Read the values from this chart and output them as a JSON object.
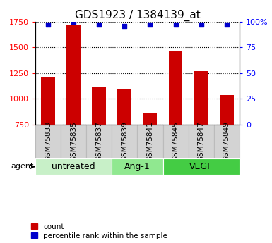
{
  "title": "GDS1923 / 1384139_at",
  "samples": [
    "GSM75833",
    "GSM75835",
    "GSM75837",
    "GSM75839",
    "GSM75841",
    "GSM75845",
    "GSM75847",
    "GSM75849"
  ],
  "counts": [
    1210,
    1720,
    1110,
    1100,
    860,
    1470,
    1270,
    1040
  ],
  "percentile_ranks": [
    97,
    100,
    97,
    96,
    97,
    97,
    97,
    97
  ],
  "groups": [
    {
      "label": "untreated",
      "start": 0,
      "end": 3,
      "color": "#c8f0c8"
    },
    {
      "label": "Ang-1",
      "start": 3,
      "end": 5,
      "color": "#90e890"
    },
    {
      "label": "VEGF",
      "start": 5,
      "end": 8,
      "color": "#44cc44"
    }
  ],
  "ylim": [
    750,
    1750
  ],
  "yticks": [
    750,
    1000,
    1250,
    1500,
    1750
  ],
  "ytick_labels": [
    "750",
    "1000",
    "1250",
    "1500",
    "1750"
  ],
  "right_yticks": [
    0,
    25,
    50,
    75,
    100
  ],
  "right_ytick_labels": [
    "0",
    "25",
    "50",
    "75",
    "100%"
  ],
  "bar_color": "#cc0000",
  "dot_color": "#0000cc",
  "bar_width": 0.55,
  "agent_label": "agent",
  "legend_count_label": "count",
  "legend_percentile_label": "percentile rank within the sample",
  "title_fontsize": 11,
  "axis_fontsize": 8,
  "label_fontsize": 8,
  "tick_fontsize": 8,
  "group_label_fontsize": 9,
  "sample_label_fontsize": 7.5,
  "gray_box_color": "#d3d3d3",
  "box_edge_color": "#bbbbbb"
}
